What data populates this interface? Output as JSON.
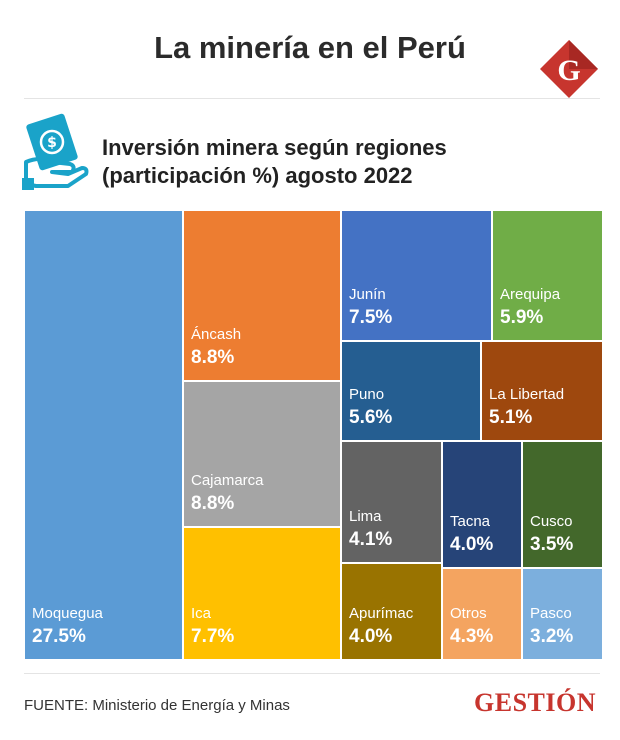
{
  "header": {
    "title": "La minería en el Perú",
    "logo_letter": "G",
    "logo_color": "#c7352e"
  },
  "chart_data": {
    "type": "treemap",
    "title": "Inversión minera según regiones",
    "subtitle": "(participación %) agosto 2022",
    "unit": "%",
    "items": [
      {
        "name": "Moquegua",
        "value": 27.5,
        "label": "27.5%",
        "color": "#5b9bd5"
      },
      {
        "name": "Áncash",
        "value": 8.8,
        "label": "8.8%",
        "color": "#ed7d31"
      },
      {
        "name": "Cajamarca",
        "value": 8.8,
        "label": "8.8%",
        "color": "#a5a5a5"
      },
      {
        "name": "Ica",
        "value": 7.7,
        "label": "7.7%",
        "color": "#ffc000"
      },
      {
        "name": "Junín",
        "value": 7.5,
        "label": "7.5%",
        "color": "#4472c4"
      },
      {
        "name": "Arequipa",
        "value": 5.9,
        "label": "5.9%",
        "color": "#70ad47"
      },
      {
        "name": "Puno",
        "value": 5.6,
        "label": "5.6%",
        "color": "#255e91"
      },
      {
        "name": "La Libertad",
        "value": 5.1,
        "label": "5.1%",
        "color": "#9e480e"
      },
      {
        "name": "Lima",
        "value": 4.1,
        "label": "4.1%",
        "color": "#636363"
      },
      {
        "name": "Tacna",
        "value": 4.0,
        "label": "4.0%",
        "color": "#264478"
      },
      {
        "name": "Cusco",
        "value": 3.5,
        "label": "3.5%",
        "color": "#43682b"
      },
      {
        "name": "Apurímac",
        "value": 4.0,
        "label": "4.0%",
        "color": "#997300"
      },
      {
        "name": "Otros",
        "value": 4.3,
        "label": "4.3%",
        "color": "#f4a460"
      },
      {
        "name": "Pasco",
        "value": 3.2,
        "label": "3.2%",
        "color": "#7cafdd"
      }
    ]
  },
  "footer": {
    "source": "FUENTE: Ministerio de Energía y Minas",
    "brand": "GESTIÓN"
  }
}
